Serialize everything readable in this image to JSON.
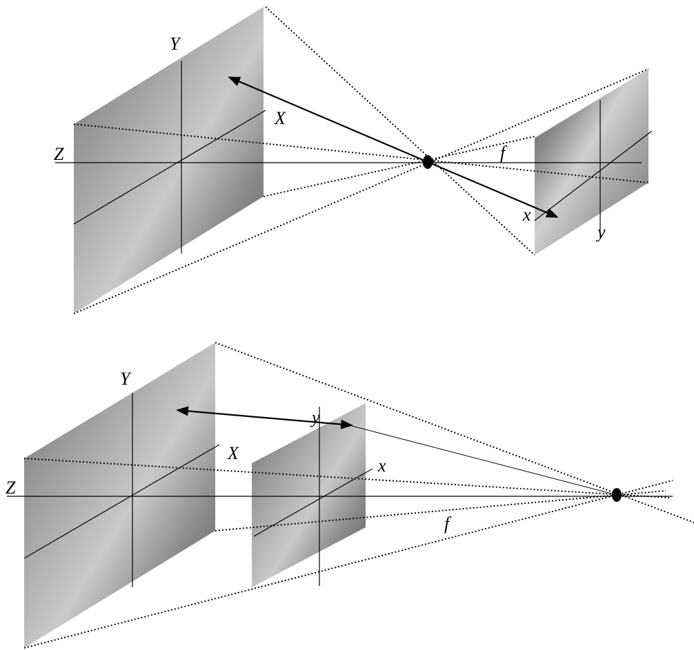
{
  "top_panel": {
    "world_labels": {
      "Y": "Y",
      "X": "X",
      "Z": "Z"
    },
    "focal_label": "f",
    "image_labels": {
      "x": "x",
      "y": "y"
    }
  },
  "bottom_panel": {
    "world_labels": {
      "Y": "Y",
      "X": "X",
      "Z": "Z"
    },
    "focal_label": "f",
    "image_labels": {
      "x": "x",
      "y": "y"
    }
  }
}
